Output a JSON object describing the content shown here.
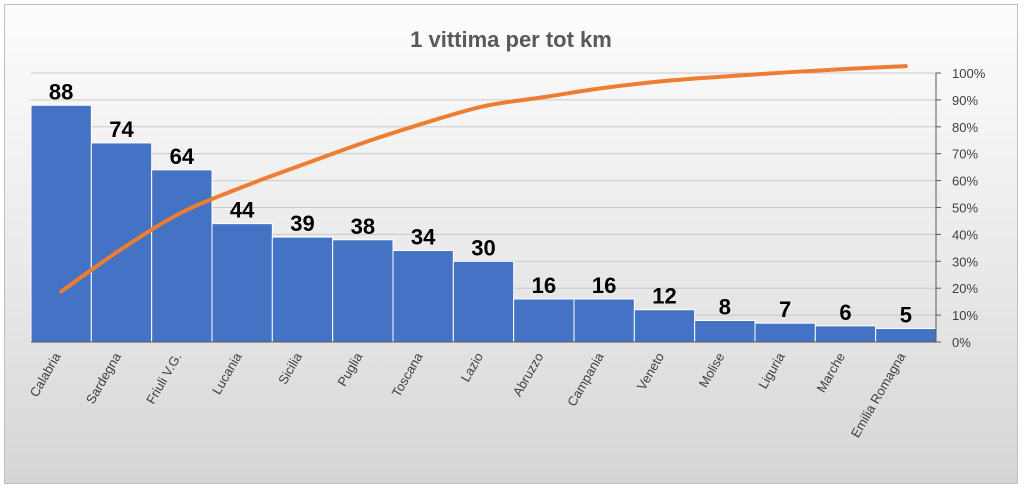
{
  "chart_data": {
    "type": "bar",
    "title": "1 vittima per tot km",
    "categories": [
      "Calabria",
      "Sardegna",
      "Friuli V.G.",
      "Lucania",
      "Sicilia",
      "Puglia",
      "Toscana",
      "Lazio",
      "Abruzzo",
      "Campania",
      "Veneto",
      "Molise",
      "Liguria",
      "Marche",
      "Emilia Romagna"
    ],
    "series": [
      {
        "type": "bar",
        "values": [
          88,
          74,
          64,
          44,
          39,
          38,
          34,
          30,
          16,
          16,
          12,
          8,
          7,
          6,
          5
        ],
        "color": "#4472c4",
        "axis": "left"
      },
      {
        "type": "line",
        "values": [
          0.1876,
          0.3454,
          0.4819,
          0.5757,
          0.6588,
          0.7399,
          0.8124,
          0.8763,
          0.9104,
          0.9446,
          0.9701,
          0.9872,
          1.0021,
          1.0149,
          1.0256
        ],
        "color": "#ed7d31",
        "axis": "right"
      }
    ],
    "y_left_lim": [
      0,
      100
    ],
    "y_right_ticks": [
      "0%",
      "10%",
      "20%",
      "30%",
      "40%",
      "50%",
      "60%",
      "70%",
      "80%",
      "90%",
      "100%"
    ],
    "y_right_lim": [
      0,
      1
    ],
    "grid": true,
    "legend": "none",
    "xlabel": "",
    "ylabel": ""
  }
}
